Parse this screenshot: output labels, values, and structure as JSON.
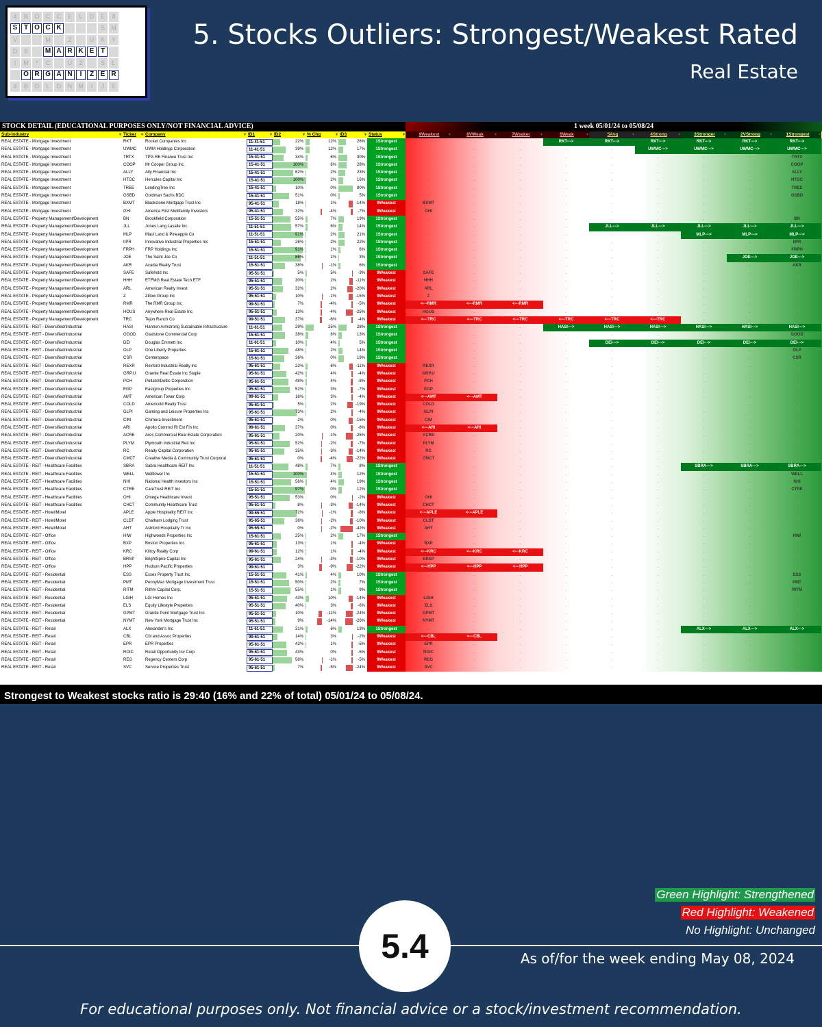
{
  "logo": {
    "rows": [
      [
        "4",
        "B",
        "O",
        "C",
        "C",
        "E",
        "L",
        "D",
        "E",
        "8"
      ],
      [
        "S",
        "T",
        "O",
        "C",
        "K",
        "",
        "",
        "",
        "S",
        "M"
      ],
      [
        "V",
        "",
        "",
        "M",
        "",
        "Z",
        "",
        "U",
        "K",
        "Y"
      ],
      [
        "D",
        "8",
        "",
        "M",
        "A",
        "R",
        "K",
        "E",
        "T",
        ""
      ],
      [
        "I",
        "M",
        "*",
        "C",
        "",
        "U",
        "Z",
        "",
        "S",
        "L"
      ],
      [
        "",
        "O",
        "R",
        "G",
        "A",
        "N",
        "I",
        "Z",
        "E",
        "R"
      ],
      [
        "4",
        "B",
        "D",
        "L",
        "D",
        "N",
        "M",
        "I",
        "J",
        "E"
      ]
    ],
    "highlight": [
      [
        1,
        0
      ],
      [
        1,
        1
      ],
      [
        1,
        2
      ],
      [
        1,
        3
      ],
      [
        1,
        4
      ],
      [
        3,
        3
      ],
      [
        3,
        4
      ],
      [
        3,
        5
      ],
      [
        3,
        6
      ],
      [
        3,
        7
      ],
      [
        3,
        8
      ],
      [
        5,
        1
      ],
      [
        5,
        2
      ],
      [
        5,
        3
      ],
      [
        5,
        4
      ],
      [
        5,
        5
      ],
      [
        5,
        6
      ],
      [
        5,
        7
      ],
      [
        5,
        8
      ],
      [
        5,
        9
      ]
    ]
  },
  "header": {
    "title": "5. Stocks Outliers: Strongest/Weakest Rated",
    "subtitle": "Real Estate"
  },
  "sheet": {
    "banner_left": "STOCK DETAIL (EDUCATIONAL PURPOSES ONLY/NOT FINANCIAL ADVICE)",
    "banner_right": "1 week 05/01/24 to 05/08/24",
    "columns": [
      "Sub-Industry",
      "Ticker",
      "Company",
      "ID1",
      "ID2",
      "% Chg",
      "ID3",
      "Status",
      "9Weakest",
      "8VWeak",
      "7Weaker",
      "6Weak",
      "5Avg",
      "4Strong",
      "3Stronger",
      "2VStrong",
      "1Strongest"
    ]
  },
  "rows": [
    [
      "REAL ESTATE - Mortgage Investment",
      "RKT",
      "Rocket Companies Inc",
      "11-41-51",
      "22%",
      "12%",
      "26%",
      "1Strongest",
      "g6",
      "RKT"
    ],
    [
      "REAL ESTATE - Mortgage Investment",
      "UWMC",
      "UWM Holdings Corporation",
      "11-41-51",
      "39%",
      "12%",
      "17%",
      "1Strongest",
      "g4",
      "UWMC"
    ],
    [
      "REAL ESTATE - Mortgage Investment",
      "TRTX",
      "TPG RE Finance Trust Inc",
      "15-41-51",
      "34%",
      "6%",
      "30%",
      "1Strongest",
      "s",
      "TRTX"
    ],
    [
      "REAL ESTATE - Mortgage Investment",
      "COOP",
      "Mr Cooper Group Inc",
      "15-41-51",
      "100%",
      "6%",
      "28%",
      "1Strongest",
      "s",
      "COOP"
    ],
    [
      "REAL ESTATE - Mortgage Investment",
      "ALLY",
      "Ally Financial Inc",
      "15-41-51",
      "62%",
      "2%",
      "23%",
      "1Strongest",
      "s",
      "ALLY"
    ],
    [
      "REAL ESTATE - Mortgage Investment",
      "HTGC",
      "Hercules Capital Inc",
      "15-41-51",
      "100%",
      "2%",
      "16%",
      "1Strongest",
      "s",
      "HTGC"
    ],
    [
      "REAL ESTATE - Mortgage Investment",
      "TREE",
      "LendingTree Inc",
      "15-41-51",
      "10%",
      "0%",
      "80%",
      "1Strongest",
      "s",
      "TREE"
    ],
    [
      "REAL ESTATE - Mortgage Investment",
      "GSBD",
      "Goldman Sachs BDC",
      "15-41-51",
      "51%",
      "0%",
      "5%",
      "1Strongest",
      "s",
      "GSBD"
    ],
    [
      "REAL ESTATE - Mortgage Investment",
      "BXMT",
      "Blackstone Mortgage Trust Inc",
      "95-41-51",
      "18%",
      "1%",
      "-14%",
      "9Weakest",
      "w",
      "BXMT"
    ],
    [
      "REAL ESTATE - Mortgage Investment",
      "GHI",
      "America First Multifamily Investors",
      "95-41-51",
      "32%",
      "-4%",
      "-7%",
      "9Weakest",
      "w",
      "GHI"
    ],
    [
      "REAL ESTATE - Property Management/Development",
      "BN",
      "Brookfield Corporation",
      "15-51-51",
      "55%",
      "7%",
      "19%",
      "1Strongest",
      "s",
      "BN"
    ],
    [
      "REAL ESTATE - Property Management/Development",
      "JLL",
      "Jones Lang Lasalle Inc",
      "11-51-51",
      "57%",
      "6%",
      "14%",
      "1Strongest",
      "g5",
      "JLL"
    ],
    [
      "REAL ESTATE - Property Management/Development",
      "MLP",
      "Maui Land & Pineapple Co",
      "11-51-51",
      "91%",
      "2%",
      "21%",
      "1Strongest",
      "g3",
      "MLP"
    ],
    [
      "REAL ESTATE - Property Management/Development",
      "IIPR",
      "Innovative Industrial Properties Inc",
      "15-51-51",
      "26%",
      "2%",
      "22%",
      "1Strongest",
      "s",
      "IIPR"
    ],
    [
      "REAL ESTATE - Property Management/Development",
      "FRPH",
      "FRP Holdings Inc",
      "15-51-51",
      "91%",
      "1%",
      "6%",
      "1Strongest",
      "s",
      "FRPH"
    ],
    [
      "REAL ESTATE - Property Management/Development",
      "JOE",
      "The Saint Joe Co",
      "11-51-51",
      "86%",
      "1%",
      "3%",
      "1Strongest",
      "g2",
      "JOE"
    ],
    [
      "REAL ESTATE - Property Management/Development",
      "AKR",
      "Acadia Realty Trust",
      "15-51-51",
      "38%",
      "-1%",
      "6%",
      "1Strongest",
      "s",
      "AKR"
    ],
    [
      "REAL ESTATE - Property Management/Development",
      "SAFE",
      "Safehold Inc",
      "95-51-51",
      "5%",
      "5%",
      "-3%",
      "9Weakest",
      "w",
      "SAFE"
    ],
    [
      "REAL ESTATE - Property Management/Development",
      "HHH",
      "ETFMG Real Estate Tech ETF",
      "95-51-51",
      "30%",
      "2%",
      "-11%",
      "9Weakest",
      "w",
      "HHH"
    ],
    [
      "REAL ESTATE - Property Management/Development",
      "ARL",
      "American Realty Invest",
      "95-51-51",
      "32%",
      "2%",
      "-20%",
      "9Weakest",
      "w",
      "ARL"
    ],
    [
      "REAL ESTATE - Property Management/Development",
      "Z",
      "Zillow Group Inc",
      "95-51-51",
      "10%",
      "-1%",
      "-15%",
      "9Weakest",
      "w",
      "Z"
    ],
    [
      "REAL ESTATE - Property Management/Development",
      "RMR",
      "The RMR Group Inc",
      "99-51-51",
      "7%",
      "-4%",
      "-5%",
      "9Weakest",
      "r3",
      "RMR"
    ],
    [
      "REAL ESTATE - Property Management/Development",
      "HOUS",
      "Anywhere Real Estate Inc",
      "95-51-51",
      "13%",
      "-4%",
      "-25%",
      "9Weakest",
      "w",
      "HOUS"
    ],
    [
      "REAL ESTATE - Property Management/Development",
      "TRC",
      "Tejon Ranch Co",
      "99-51-51",
      "37%",
      "-6%",
      "-4%",
      "9Weakest",
      "r6",
      "TRC"
    ],
    [
      "REAL ESTATE - REIT - Diversified/Industrial",
      "HASI",
      "Hannon Armstrong Sustainable Infrastructure",
      "11-61-51",
      "29%",
      "25%",
      "28%",
      "1Strongest",
      "g6",
      "HASI"
    ],
    [
      "REAL ESTATE - REIT - Diversified/Industrial",
      "GOOD",
      "Gladstone Commercial Corp",
      "15-61-51",
      "38%",
      "8%",
      "13%",
      "1Strongest",
      "s",
      "GOOD"
    ],
    [
      "REAL ESTATE - REIT - Diversified/Industrial",
      "DEI",
      "Douglas Emmett Inc",
      "11-61-51",
      "10%",
      "4%",
      "5%",
      "1Strongest",
      "g5",
      "DEI"
    ],
    [
      "REAL ESTATE - REIT - Diversified/Industrial",
      "OLP",
      "One Liberty Properties",
      "15-61-51",
      "48%",
      "2%",
      "14%",
      "1Strongest",
      "s",
      "OLP"
    ],
    [
      "REAL ESTATE - REIT - Diversified/Industrial",
      "CSR",
      "Centerspace",
      "15-61-51",
      "36%",
      "0%",
      "19%",
      "1Strongest",
      "s",
      "CSR"
    ],
    [
      "REAL ESTATE - REIT - Diversified/Industrial",
      "REXR",
      "Rexford Industrial Realty Inc",
      "95-61-51",
      "22%",
      "6%",
      "-11%",
      "9Weakest",
      "w",
      "REXR"
    ],
    [
      "REAL ESTATE - REIT - Diversified/Industrial",
      "GRP.U",
      "Granite Real Estate Inc Staple",
      "95-61-51",
      "42%",
      "4%",
      "-4%",
      "9Weakest",
      "w",
      "GRP.U"
    ],
    [
      "REAL ESTATE - REIT - Diversified/Industrial",
      "PCH",
      "PotlatchDeltic Corporation",
      "95-61-51",
      "48%",
      "4%",
      "-8%",
      "9Weakest",
      "w",
      "PCH"
    ],
    [
      "REAL ESTATE - REIT - Diversified/Industrial",
      "EGP",
      "Eastgroup Properties Inc",
      "95-61-51",
      "52%",
      "3%",
      "-7%",
      "9Weakest",
      "w",
      "EGP"
    ],
    [
      "REAL ESTATE - REIT - Diversified/Industrial",
      "AMT",
      "American Tower Corp",
      "99-61-51",
      "16%",
      "3%",
      "-4%",
      "9Weakest",
      "r2",
      "AMT"
    ],
    [
      "REAL ESTATE - REIT - Diversified/Industrial",
      "COLD",
      "Americold Realty Trust",
      "95-61-51",
      "5%",
      "2%",
      "-19%",
      "9Weakest",
      "w",
      "COLD"
    ],
    [
      "REAL ESTATE - REIT - Diversified/Industrial",
      "GLPI",
      "Gaming and Leisure Properties Inc",
      "95-61-51",
      "73%",
      "2%",
      "-4%",
      "9Weakest",
      "w",
      "GLPI"
    ],
    [
      "REAL ESTATE - REIT - Diversified/Industrial",
      "CIM",
      "Chimera Investment",
      "95-61-51",
      "2%",
      "0%",
      "-15%",
      "9Weakest",
      "w",
      "CIM"
    ],
    [
      "REAL ESTATE - REIT - Diversified/Industrial",
      "ARI",
      "Apollo Commcl Rl Est Fin Inc",
      "99-61-51",
      "37%",
      "0%",
      "-8%",
      "9Weakest",
      "r2",
      "ARI"
    ],
    [
      "REAL ESTATE - REIT - Diversified/Industrial",
      "ACRE",
      "Ares Commercial Real Estate Corporation",
      "95-61-51",
      "20%",
      "-1%",
      "-25%",
      "9Weakest",
      "w",
      "ACRE"
    ],
    [
      "REAL ESTATE - REIT - Diversified/Industrial",
      "PLYM",
      "Plymouth Industrial Reit Inc",
      "95-61-51",
      "52%",
      "-2%",
      "-7%",
      "9Weakest",
      "w",
      "PLYM"
    ],
    [
      "REAL ESTATE - REIT - Diversified/Industrial",
      "RC",
      "Ready Capital Corporation",
      "95-61-51",
      "35%",
      "-3%",
      "-14%",
      "9Weakest",
      "w",
      "RC"
    ],
    [
      "REAL ESTATE - REIT - Diversified/Industrial",
      "CMCT",
      "Creative Media & Community Trust Corporat",
      "95-61-51",
      "0%",
      "-4%",
      "-22%",
      "9Weakest",
      "w",
      "CMCT"
    ],
    [
      "REAL ESTATE - REIT - Healthcare Facilities",
      "SBRA",
      "Sabra Healthcare REIT Inc",
      "11-51-51",
      "48%",
      "7%",
      "8%",
      "1Strongest",
      "g3",
      "SBRA"
    ],
    [
      "REAL ESTATE - REIT - Healthcare Facilities",
      "WELL",
      "Welltower Inc",
      "15-51-51",
      "100%",
      "4%",
      "12%",
      "1Strongest",
      "s",
      "WELL"
    ],
    [
      "REAL ESTATE - REIT - Healthcare Facilities",
      "NHI",
      "National Health Investors Inc",
      "15-51-51",
      "56%",
      "4%",
      "19%",
      "1Strongest",
      "s",
      "NHI"
    ],
    [
      "REAL ESTATE - REIT - Healthcare Facilities",
      "CTRE",
      "CareTrust REIT Inc",
      "15-51-51",
      "97%",
      "0%",
      "12%",
      "1Strongest",
      "s",
      "CTRE"
    ],
    [
      "REAL ESTATE - REIT - Healthcare Facilities",
      "OHI",
      "Omega Healthcare Invest",
      "95-51-51",
      "53%",
      "0%",
      "-2%",
      "9Weakest",
      "w",
      "OHI"
    ],
    [
      "REAL ESTATE - REIT - Healthcare Facilities",
      "CHCT",
      "Community Healthcare Trust",
      "95-51-51",
      "8%",
      "-3%",
      "-14%",
      "9Weakest",
      "w",
      "CHCT"
    ],
    [
      "REAL ESTATE - REIT - Hotel/Motel",
      "APLE",
      "Apple Hospitality REIT Inc",
      "99-65-51",
      "72%",
      "-1%",
      "-8%",
      "9Weakest",
      "r2",
      "APLE"
    ],
    [
      "REAL ESTATE - REIT - Hotel/Motel",
      "CLDT",
      "Chatham Lodging Trust",
      "95-65-51",
      "36%",
      "-2%",
      "-10%",
      "9Weakest",
      "w",
      "CLDT"
    ],
    [
      "REAL ESTATE - REIT - Hotel/Motel",
      "AHT",
      "Ashford Hospitality Tr Inc",
      "95-65-51",
      "0%",
      "-2%",
      "-42%",
      "9Weakest",
      "w",
      "AHT"
    ],
    [
      "REAL ESTATE - REIT - Office",
      "HIW",
      "Highwoods Properties Inc",
      "15-61-51",
      "25%",
      "2%",
      "17%",
      "1Strongest",
      "s",
      "HIW"
    ],
    [
      "REAL ESTATE - REIT - Office",
      "BXP",
      "Boston Properties Inc",
      "95-61-51",
      "13%",
      "1%",
      "-4%",
      "9Weakest",
      "w",
      "BXP"
    ],
    [
      "REAL ESTATE - REIT - Office",
      "KRC",
      "Kilroy Realty Corp",
      "99-61-51",
      "12%",
      "1%",
      "-4%",
      "9Weakest",
      "r3",
      "KRC"
    ],
    [
      "REAL ESTATE - REIT - Office",
      "BRSP",
      "BrightSpire Capital Inc",
      "95-61-51",
      "24%",
      "-3%",
      "-10%",
      "9Weakest",
      "w",
      "BRSP"
    ],
    [
      "REAL ESTATE - REIT - Office",
      "HPP",
      "Hudson Pacific Properties",
      "99-61-51",
      "3%",
      "-9%",
      "-22%",
      "9Weakest",
      "r3",
      "HPP"
    ],
    [
      "REAL ESTATE - REIT - Residential",
      "ESS",
      "Essex Property Trust Inc",
      "15-51-51",
      "41%",
      "4%",
      "10%",
      "1Strongest",
      "s",
      "ESS"
    ],
    [
      "REAL ESTATE - REIT - Residential",
      "PMT",
      "PennyMac Mortgage Investment Trust",
      "15-51-51",
      "50%",
      "2%",
      "7%",
      "1Strongest",
      "s",
      "PMT"
    ],
    [
      "REAL ESTATE - REIT - Residential",
      "RITM",
      "Rithm Capital Corp.",
      "15-51-51",
      "55%",
      "1%",
      "9%",
      "1Strongest",
      "s",
      "RITM"
    ],
    [
      "REAL ESTATE - REIT - Residential",
      "LGIH",
      "LGI Homes Inc",
      "95-51-51",
      "43%",
      "10%",
      "-14%",
      "9Weakest",
      "w",
      "LGIH"
    ],
    [
      "REAL ESTATE - REIT - Residential",
      "ELS",
      "Equity Lifestyle Properties",
      "95-51-51",
      "40%",
      "3%",
      "-6%",
      "9Weakest",
      "w",
      "ELS"
    ],
    [
      "REAL ESTATE - REIT - Residential",
      "GPMT",
      "Granite Point Mortgage Trust Inc",
      "95-51-51",
      "10%",
      "-11%",
      "-24%",
      "9Weakest",
      "w",
      "GPMT"
    ],
    [
      "REAL ESTATE - REIT - Residential",
      "NYMT",
      "New York Mortgage Trust Inc",
      "95-51-51",
      "9%",
      "-14%",
      "-26%",
      "9Weakest",
      "w",
      "NYMT"
    ],
    [
      "REAL ESTATE - REIT - Retail",
      "ALX",
      "Alexander's Inc",
      "11-61-51",
      "31%",
      "6%",
      "13%",
      "1Strongest",
      "g3",
      "ALX"
    ],
    [
      "REAL ESTATE - REIT - Retail",
      "CBL",
      "Cbl and Assoc Properties",
      "99-61-51",
      "14%",
      "3%",
      "-2%",
      "9Weakest",
      "r2",
      "CBL"
    ],
    [
      "REAL ESTATE - REIT - Retail",
      "EPR",
      "EPR Properties",
      "95-61-51",
      "42%",
      "1%",
      "-5%",
      "9Weakest",
      "w",
      "EPR"
    ],
    [
      "REAL ESTATE - REIT - Retail",
      "ROIC",
      "Retail Opportunity Inv Corp",
      "95-61-51",
      "43%",
      "0%",
      "-5%",
      "9Weakest",
      "w",
      "ROIC"
    ],
    [
      "REAL ESTATE - REIT - Retail",
      "REG",
      "Regency Centers Corp",
      "95-61-51",
      "58%",
      "-1%",
      "-5%",
      "9Weakest",
      "w",
      "REG"
    ],
    [
      "REAL ESTATE - REIT - Retail",
      "SVC",
      "Service Properties Trust",
      "95-61-51",
      "7%",
      "-5%",
      "-24%",
      "9Weakest",
      "w",
      "SVC"
    ]
  ],
  "arrows": {
    "right": "--->",
    "left": "<---",
    "dot": "."
  },
  "ratio_text": "Strongest to Weakest stocks ratio is 29:40 (16% and 22% of total) 05/01/24 to 05/08/24.",
  "legend": {
    "green": "Green Highlight: Strengthened",
    "red": "Red Highlight: Weakened",
    "none": "No Highlight: Unchanged"
  },
  "badge": "5.4",
  "as_of": "As of/for the week ending May 08, 2024",
  "footer": "For educational purposes only. Not financial advice or a stock/investment recommendation.",
  "colors": {
    "background": "#1d3a5c",
    "strong": "#00a020",
    "weak": "#e00000",
    "header_yellow": "#ffff00"
  }
}
